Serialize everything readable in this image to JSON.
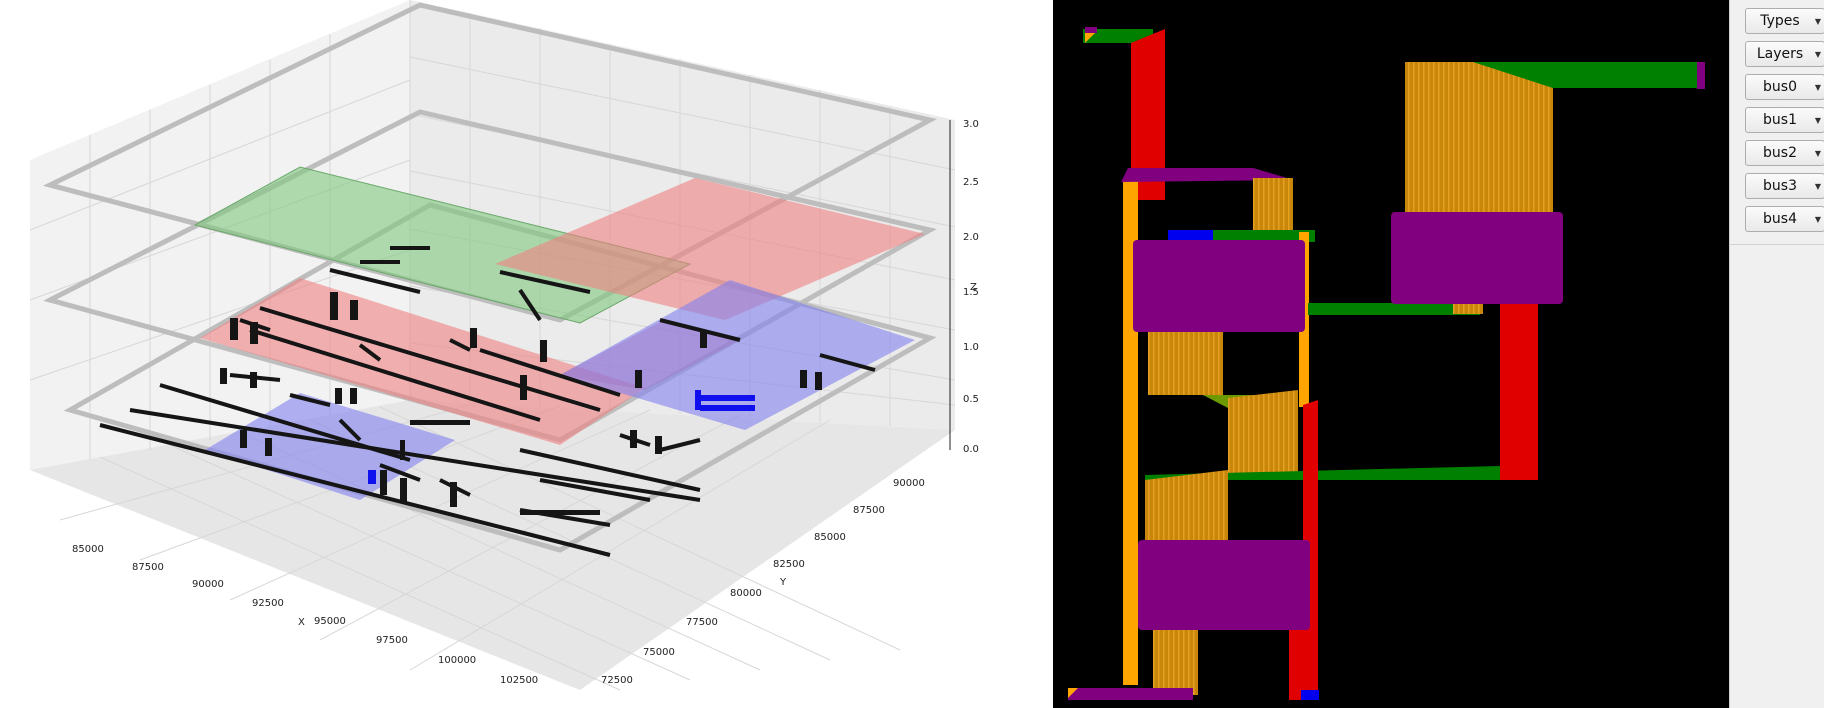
{
  "plot3d": {
    "x_label": "X",
    "y_label": "Y",
    "z_label": "Z",
    "x_ticks": [
      "85000",
      "87500",
      "90000",
      "92500",
      "95000",
      "97500",
      "100000",
      "102500"
    ],
    "y_ticks": [
      "72500",
      "75000",
      "77500",
      "80000",
      "82500",
      "85000",
      "87500",
      "90000"
    ],
    "z_ticks": [
      "0.0",
      "0.5",
      "1.0",
      "1.5",
      "2.0",
      "2.5",
      "3.0"
    ]
  },
  "panel": {
    "buttons": [
      {
        "label": "Types"
      },
      {
        "label": "Layers"
      },
      {
        "label": "bus0"
      },
      {
        "label": "bus1"
      },
      {
        "label": "bus2"
      },
      {
        "label": "bus3"
      },
      {
        "label": "bus4"
      }
    ]
  },
  "colors": {
    "green": "#008000",
    "red": "#ff0000",
    "orange": "#ffa500",
    "purple": "#800080",
    "blue": "#0000ff"
  }
}
